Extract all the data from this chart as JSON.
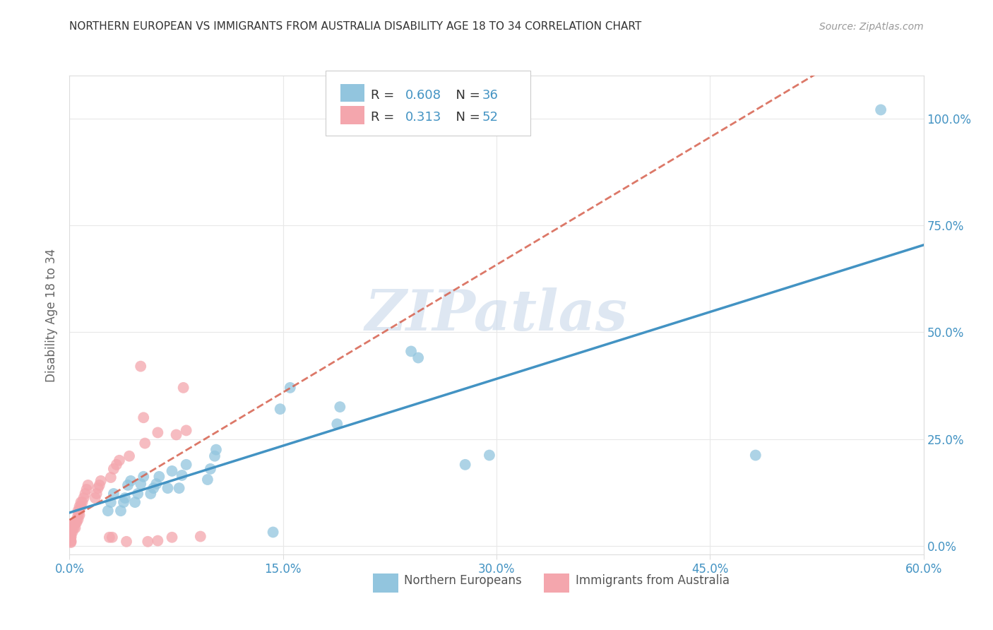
{
  "title": "NORTHERN EUROPEAN VS IMMIGRANTS FROM AUSTRALIA DISABILITY AGE 18 TO 34 CORRELATION CHART",
  "source": "Source: ZipAtlas.com",
  "ylabel": "Disability Age 18 to 34",
  "xlim": [
    0.0,
    0.6
  ],
  "ylim": [
    -0.02,
    1.1
  ],
  "xticks": [
    0.0,
    0.15,
    0.3,
    0.45,
    0.6
  ],
  "xtick_labels": [
    "0.0%",
    "15.0%",
    "30.0%",
    "45.0%",
    "60.0%"
  ],
  "yticks_right": [
    0.0,
    0.25,
    0.5,
    0.75,
    1.0
  ],
  "ytick_labels_right": [
    "0.0%",
    "25.0%",
    "50.0%",
    "75.0%",
    "100.0%"
  ],
  "legend_r_blue": "0.608",
  "legend_n_blue": "36",
  "legend_r_pink": "0.313",
  "legend_n_pink": "52",
  "blue_scatter_color": "#92c5de",
  "pink_scatter_color": "#f4a6ad",
  "blue_line_color": "#4393c3",
  "pink_line_color": "#d6604d",
  "pink_line_style": "--",
  "watermark_text": "ZIPatlas",
  "watermark_color": "#c8d8ea",
  "blue_scatter_x": [
    0.57,
    0.24,
    0.245,
    0.19,
    0.188,
    0.155,
    0.148,
    0.103,
    0.102,
    0.099,
    0.097,
    0.082,
    0.079,
    0.077,
    0.072,
    0.069,
    0.063,
    0.061,
    0.059,
    0.057,
    0.052,
    0.05,
    0.048,
    0.046,
    0.043,
    0.041,
    0.039,
    0.038,
    0.036,
    0.031,
    0.029,
    0.027,
    0.295,
    0.278,
    0.143,
    0.482
  ],
  "blue_scatter_y": [
    1.02,
    0.455,
    0.44,
    0.325,
    0.285,
    0.37,
    0.32,
    0.225,
    0.21,
    0.18,
    0.155,
    0.19,
    0.165,
    0.135,
    0.175,
    0.135,
    0.162,
    0.145,
    0.135,
    0.122,
    0.162,
    0.145,
    0.122,
    0.102,
    0.152,
    0.142,
    0.112,
    0.102,
    0.082,
    0.122,
    0.102,
    0.082,
    0.212,
    0.19,
    0.032,
    0.212
  ],
  "pink_scatter_x": [
    0.05,
    0.08,
    0.052,
    0.082,
    0.062,
    0.075,
    0.053,
    0.042,
    0.035,
    0.033,
    0.031,
    0.029,
    0.022,
    0.021,
    0.02,
    0.019,
    0.018,
    0.013,
    0.012,
    0.011,
    0.01,
    0.009,
    0.008,
    0.007,
    0.007,
    0.006,
    0.008,
    0.007,
    0.006,
    0.006,
    0.005,
    0.005,
    0.004,
    0.004,
    0.003,
    0.003,
    0.002,
    0.002,
    0.002,
    0.001,
    0.001,
    0.001,
    0.001,
    0.001,
    0.001,
    0.092,
    0.028,
    0.03,
    0.072,
    0.062,
    0.055,
    0.04
  ],
  "pink_scatter_y": [
    0.42,
    0.37,
    0.3,
    0.27,
    0.265,
    0.26,
    0.24,
    0.21,
    0.2,
    0.19,
    0.18,
    0.16,
    0.152,
    0.142,
    0.135,
    0.122,
    0.112,
    0.142,
    0.132,
    0.122,
    0.112,
    0.102,
    0.092,
    0.082,
    0.072,
    0.062,
    0.102,
    0.092,
    0.082,
    0.072,
    0.062,
    0.055,
    0.052,
    0.042,
    0.052,
    0.042,
    0.052,
    0.042,
    0.032,
    0.03,
    0.022,
    0.02,
    0.012,
    0.01,
    0.008,
    0.022,
    0.02,
    0.02,
    0.02,
    0.012,
    0.01,
    0.01
  ],
  "background_color": "#ffffff",
  "grid_color": "#e8e8e8",
  "spine_color": "#dddddd",
  "tick_color": "#4393c3",
  "ylabel_color": "#666666",
  "title_color": "#333333",
  "source_color": "#999999",
  "legend_text_color": "#333333"
}
